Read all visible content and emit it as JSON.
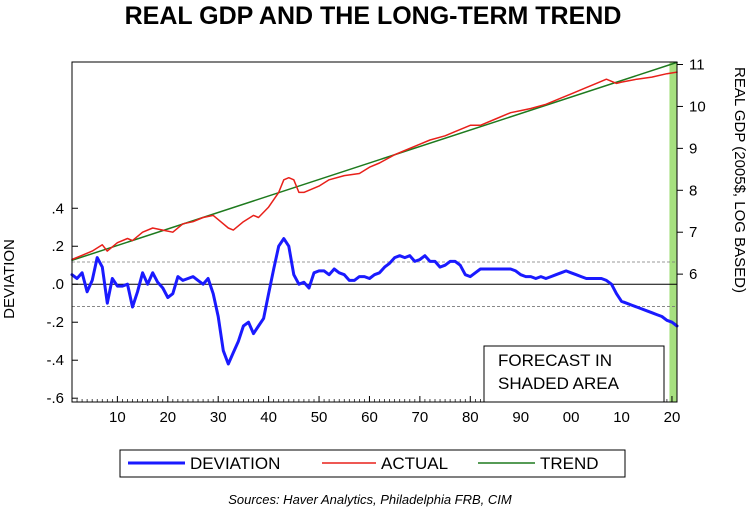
{
  "chart_data": {
    "type": "line",
    "title": "REAL GDP AND THE LONG-TERM TREND",
    "y_left_label": "DEVIATION",
    "y_right_label": "REAL GDP (2005$, LOG BASED)",
    "annotation": [
      "FORECAST IN",
      "SHADED AREA"
    ],
    "source": "Sources:  Haver Analytics, Philadelphia FRB, CIM",
    "x_ticks": [
      {
        "year": 1910,
        "label": "10"
      },
      {
        "year": 1920,
        "label": "20"
      },
      {
        "year": 1930,
        "label": "30"
      },
      {
        "year": 1940,
        "label": "40"
      },
      {
        "year": 1950,
        "label": "50"
      },
      {
        "year": 1960,
        "label": "60"
      },
      {
        "year": 1970,
        "label": "70"
      },
      {
        "year": 1980,
        "label": "80"
      },
      {
        "year": 1990,
        "label": "90"
      },
      {
        "year": 2000,
        "label": "00"
      },
      {
        "year": 2010,
        "label": "10"
      },
      {
        "year": 2020,
        "label": "20"
      }
    ],
    "xlim": [
      1901,
      2021
    ],
    "y_left_ticks": [
      {
        "v": 0.4,
        "label": ".4"
      },
      {
        "v": 0.2,
        "label": ".2"
      },
      {
        "v": 0.0,
        "label": ".0"
      },
      {
        "v": -0.2,
        "label": "-.2"
      },
      {
        "v": -0.4,
        "label": "-.4"
      },
      {
        "v": -0.6,
        "label": "-.6"
      }
    ],
    "ylim_left": [
      -0.62,
      1.17
    ],
    "y_right_ticks": [
      {
        "v": 6,
        "label": "6"
      },
      {
        "v": 7,
        "label": "7"
      },
      {
        "v": 8,
        "label": "8"
      },
      {
        "v": 9,
        "label": "9"
      },
      {
        "v": 10,
        "label": "10"
      },
      {
        "v": 11,
        "label": "11"
      }
    ],
    "ylim_right": [
      2.95,
      11.06
    ],
    "reference_lines_left": [
      0.0,
      0.117,
      -0.117
    ],
    "forecast_shade": [
      2019.5,
      2021
    ],
    "colors": {
      "deviation": "#1a1aff",
      "actual": "#e8201a",
      "trend": "#1e7a1e",
      "shade": "#a6e07f"
    },
    "series": [
      {
        "name": "DEVIATION",
        "axis": "left",
        "x": [
          1901,
          1902,
          1903,
          1904,
          1905,
          1906,
          1907,
          1908,
          1909,
          1910,
          1911,
          1912,
          1913,
          1914,
          1915,
          1916,
          1917,
          1918,
          1919,
          1920,
          1921,
          1922,
          1923,
          1924,
          1925,
          1926,
          1927,
          1928,
          1929,
          1930,
          1931,
          1932,
          1933,
          1934,
          1935,
          1936,
          1937,
          1938,
          1939,
          1940,
          1941,
          1942,
          1943,
          1944,
          1945,
          1946,
          1947,
          1948,
          1949,
          1950,
          1951,
          1952,
          1953,
          1954,
          1955,
          1956,
          1957,
          1958,
          1959,
          1960,
          1961,
          1962,
          1963,
          1964,
          1965,
          1966,
          1967,
          1968,
          1969,
          1970,
          1971,
          1972,
          1973,
          1974,
          1975,
          1976,
          1977,
          1978,
          1979,
          1980,
          1981,
          1982,
          1983,
          1984,
          1985,
          1986,
          1987,
          1988,
          1989,
          1990,
          1991,
          1992,
          1993,
          1994,
          1995,
          1996,
          1997,
          1998,
          1999,
          2000,
          2001,
          2002,
          2003,
          2004,
          2005,
          2006,
          2007,
          2008,
          2009,
          2010,
          2011,
          2012,
          2013,
          2014,
          2015,
          2016,
          2017,
          2018,
          2019,
          2020,
          2021
        ],
        "values": [
          0.05,
          0.03,
          0.06,
          -0.04,
          0.02,
          0.14,
          0.09,
          -0.1,
          0.03,
          -0.01,
          -0.01,
          0.0,
          -0.12,
          -0.04,
          0.06,
          0.0,
          0.06,
          0.01,
          -0.02,
          -0.07,
          -0.05,
          0.04,
          0.02,
          0.03,
          0.04,
          0.02,
          0.0,
          0.03,
          -0.05,
          -0.17,
          -0.35,
          -0.42,
          -0.36,
          -0.3,
          -0.22,
          -0.2,
          -0.26,
          -0.22,
          -0.18,
          -0.05,
          0.08,
          0.2,
          0.24,
          0.2,
          0.05,
          0.0,
          0.01,
          -0.02,
          0.06,
          0.07,
          0.07,
          0.05,
          0.08,
          0.06,
          0.05,
          0.02,
          0.02,
          0.04,
          0.04,
          0.03,
          0.05,
          0.06,
          0.09,
          0.11,
          0.14,
          0.15,
          0.14,
          0.15,
          0.12,
          0.13,
          0.15,
          0.12,
          0.12,
          0.09,
          0.1,
          0.12,
          0.12,
          0.1,
          0.05,
          0.04,
          0.06,
          0.08,
          0.08,
          0.08,
          0.08,
          0.08,
          0.08,
          0.08,
          0.07,
          0.05,
          0.04,
          0.04,
          0.03,
          0.04,
          0.03,
          0.04,
          0.05,
          0.06,
          0.07,
          0.06,
          0.05,
          0.04,
          0.03,
          0.03,
          0.03,
          0.03,
          0.02,
          0.0,
          -0.05,
          -0.09,
          -0.1,
          -0.11,
          -0.12,
          -0.13,
          -0.14,
          -0.15,
          -0.16,
          -0.17,
          -0.19,
          -0.2,
          -0.22
        ]
      },
      {
        "name": "ACTUAL",
        "axis": "right",
        "x": [
          1901,
          1903,
          1905,
          1907,
          1908,
          1910,
          1912,
          1913,
          1915,
          1917,
          1919,
          1921,
          1923,
          1925,
          1927,
          1929,
          1930,
          1932,
          1933,
          1935,
          1937,
          1938,
          1940,
          1942,
          1943,
          1944,
          1945,
          1946,
          1947,
          1950,
          1952,
          1955,
          1958,
          1960,
          1962,
          1965,
          1967,
          1970,
          1972,
          1975,
          1977,
          1980,
          1982,
          1985,
          1988,
          1990,
          1992,
          1995,
          1998,
          2000,
          2003,
          2005,
          2007,
          2008,
          2009,
          2010,
          2013,
          2016,
          2019,
          2021
        ],
        "values": [
          6.35,
          6.45,
          6.55,
          6.7,
          6.55,
          6.75,
          6.85,
          6.8,
          7.0,
          7.1,
          7.05,
          7.0,
          7.2,
          7.25,
          7.35,
          7.4,
          7.3,
          7.1,
          7.05,
          7.25,
          7.4,
          7.35,
          7.6,
          7.95,
          8.25,
          8.3,
          8.25,
          7.95,
          7.95,
          8.1,
          8.25,
          8.35,
          8.4,
          8.55,
          8.65,
          8.85,
          8.95,
          9.1,
          9.2,
          9.3,
          9.4,
          9.55,
          9.55,
          9.7,
          9.85,
          9.9,
          9.95,
          10.05,
          10.2,
          10.3,
          10.45,
          10.55,
          10.65,
          10.6,
          10.55,
          10.58,
          10.65,
          10.7,
          10.78,
          10.82
        ]
      },
      {
        "name": "TREND",
        "axis": "right",
        "x": [
          1901,
          2021
        ],
        "values": [
          6.33,
          11.05
        ]
      }
    ],
    "legend": [
      "DEVIATION",
      "ACTUAL",
      "TREND"
    ]
  }
}
